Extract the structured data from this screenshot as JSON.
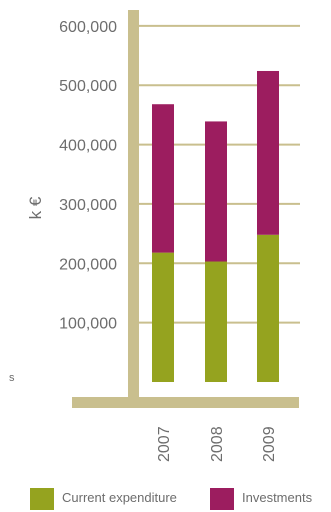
{
  "chart_data": {
    "type": "bar",
    "stacked": true,
    "categories": [
      "2007",
      "2008",
      "2009"
    ],
    "series": [
      {
        "name": "Current expenditure",
        "color": "#95a31f",
        "values": [
          218000,
          203000,
          248000
        ]
      },
      {
        "name": "Investments",
        "color": "#9c1d5f",
        "values": [
          250000,
          236000,
          276000
        ]
      }
    ],
    "ylabel": "k €",
    "ylim": [
      0,
      620000
    ],
    "yticks": [
      100000,
      200000,
      300000,
      400000,
      500000,
      600000
    ],
    "ytick_labels": [
      "100,000",
      "200,000",
      "300,000",
      "400,000",
      "500,000",
      "600,000"
    ],
    "grid": true,
    "grid_color": "#c9bf8e",
    "axis_color": "#c9bf8e",
    "legend_position": "bottom",
    "stray_text": "s"
  }
}
